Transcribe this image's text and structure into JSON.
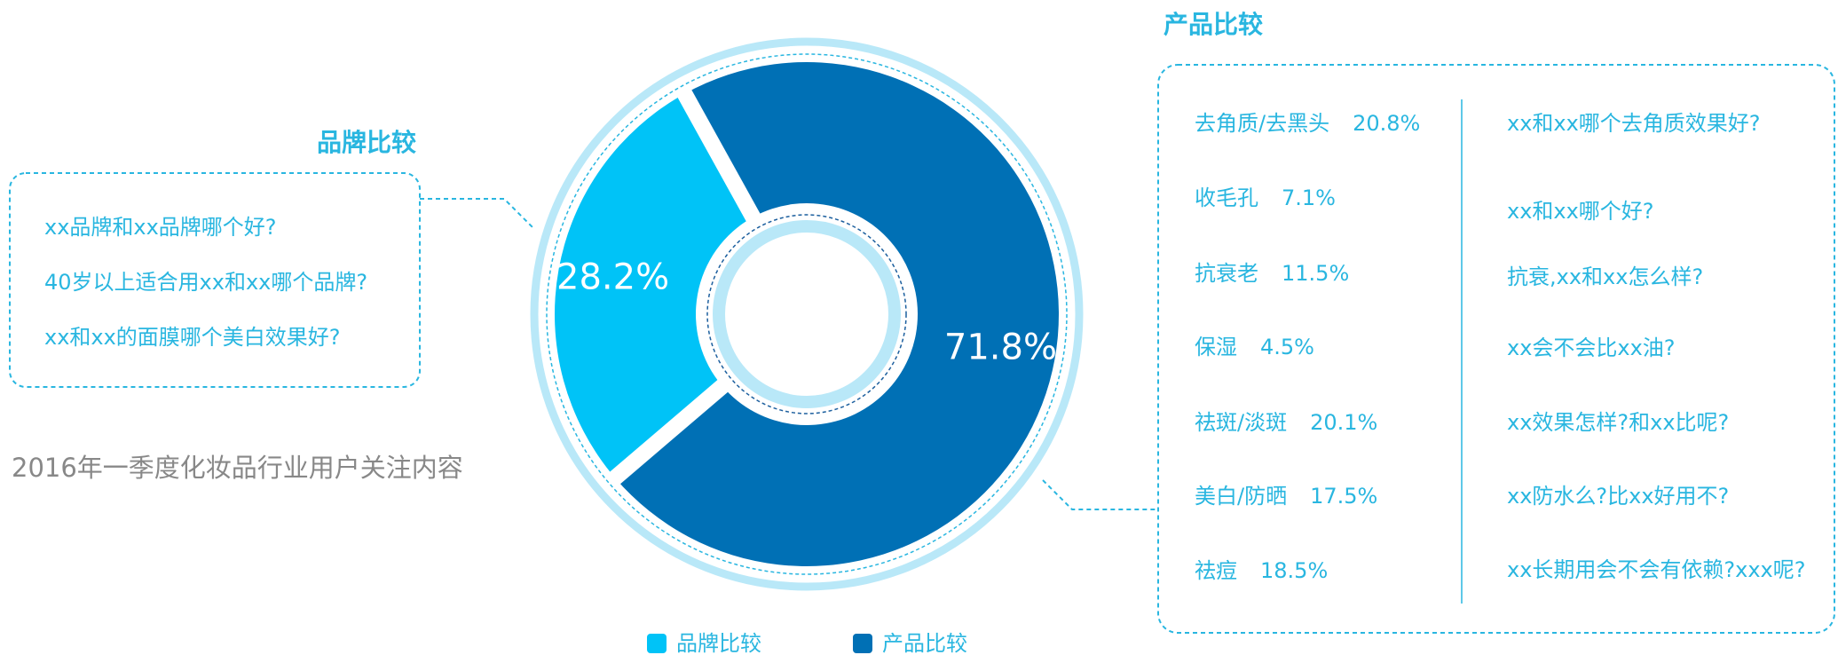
{
  "chart_data": {
    "type": "donut",
    "categories": [
      "品牌比较",
      "产品比较"
    ],
    "values": [
      28.2,
      71.8
    ],
    "value_labels": [
      "28.2%",
      "71.8%"
    ],
    "colors": [
      "#00c3f7",
      "#0070b5"
    ],
    "legend": "bottom"
  },
  "description": "2016年一季度化妆品行业用户关注内容",
  "brand_panel": {
    "title": "品牌比较",
    "questions": [
      "xx品牌和xx品牌哪个好?",
      "40岁以上适合用xx和xx哪个品牌?",
      "xx和xx的面膜哪个美白效果好?"
    ]
  },
  "product_panel": {
    "title": "产品比较",
    "items": [
      {
        "label": "去角质/去黑头",
        "share": "20.8%"
      },
      {
        "label": "收毛孔",
        "share": "7.1%"
      },
      {
        "label": "抗衰老",
        "share": "11.5%"
      },
      {
        "label": "保湿",
        "share": "4.5%"
      },
      {
        "label": "祛斑/淡斑",
        "share": "20.1%"
      },
      {
        "label": "美白/防晒",
        "share": "17.5%"
      },
      {
        "label": "祛痘",
        "share": "18.5%"
      }
    ],
    "questions": [
      "xx和xx哪个去角质效果好?",
      "xx和xx哪个好?",
      "抗衰,xx和xx怎么样?",
      "xx会不会比xx油?",
      "xx效果怎样?和xx比呢?",
      "xx防水么?比xx好用不?",
      "xx长期用会不会有依赖?xxx呢?"
    ]
  }
}
